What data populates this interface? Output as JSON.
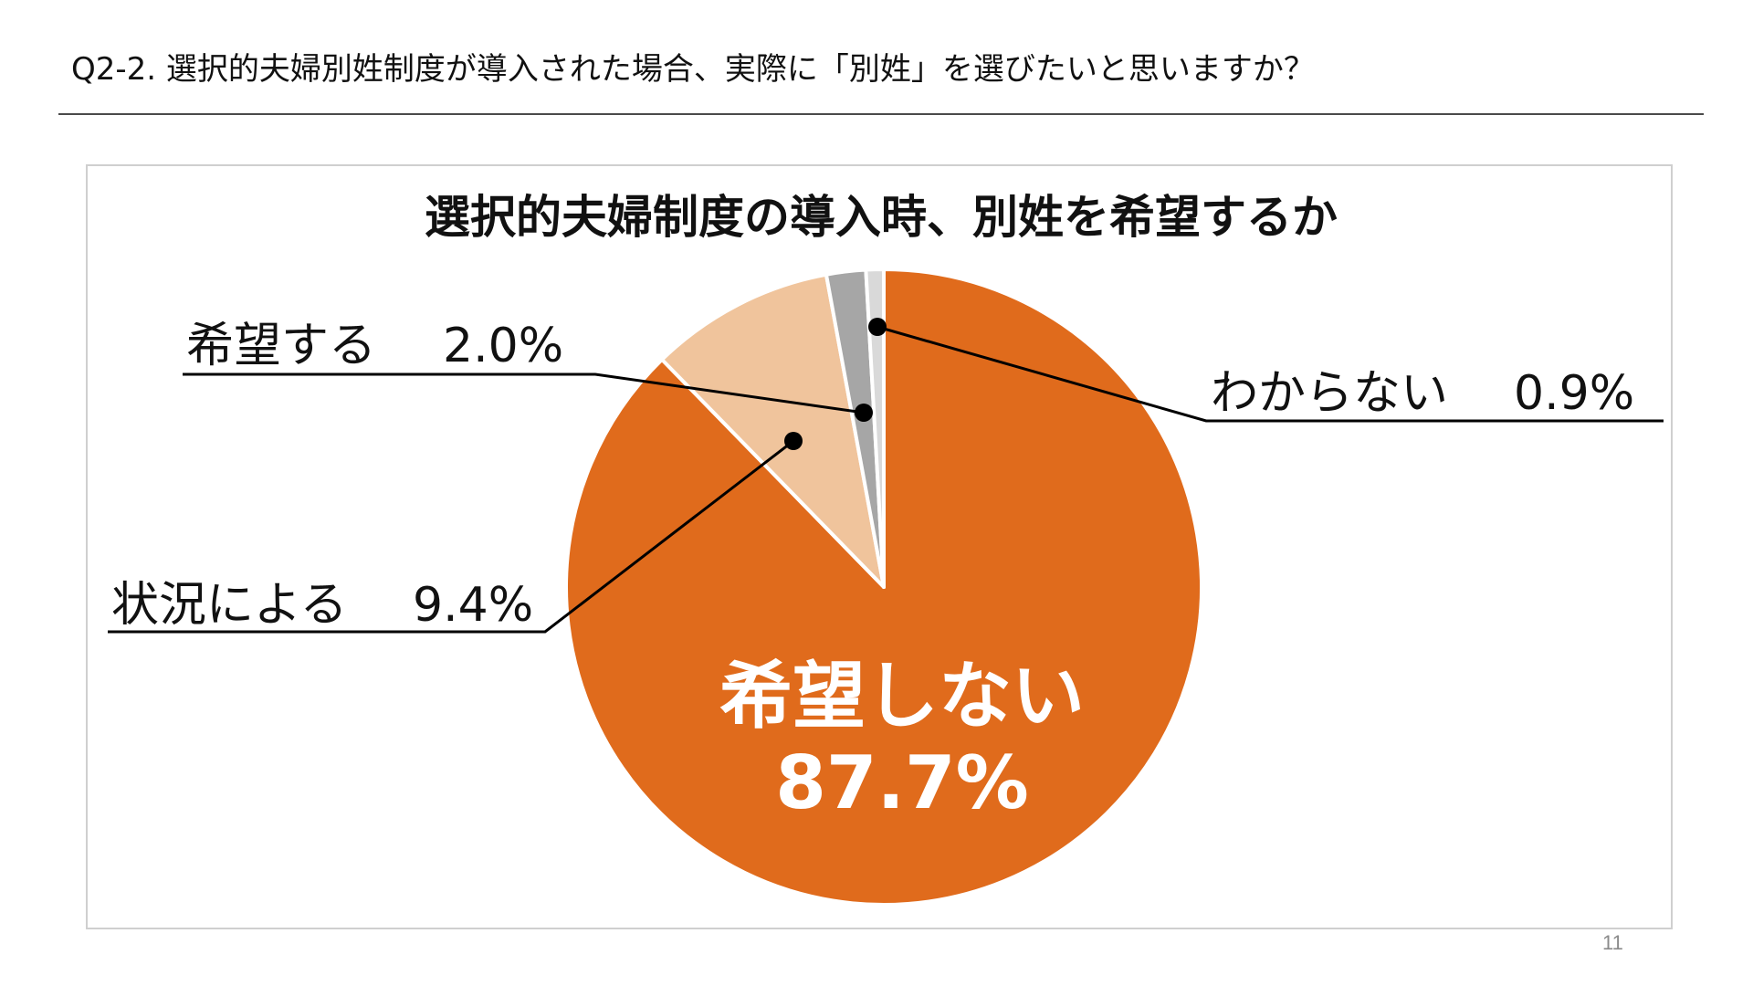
{
  "question": "Q2-2. 選択的夫婦別姓制度が導入された場合、実際に「別姓」を選びたいと思いますか？",
  "page_number": "11",
  "chart_data": {
    "type": "pie",
    "title": "選択的夫婦制度の導入時、別姓を希望するか",
    "start_angle_deg": 0,
    "direction": "clockwise",
    "slices": [
      {
        "label": "希望しない",
        "value": 87.7,
        "value_text": "87.7%",
        "color": "#E06B1C",
        "label_style": "inside"
      },
      {
        "label": "状況による",
        "value": 9.4,
        "value_text": "9.4%",
        "color": "#F0C49C",
        "label_style": "callout"
      },
      {
        "label": "希望する",
        "value": 2.0,
        "value_text": "2.0%",
        "color": "#A6A6A6",
        "label_style": "callout"
      },
      {
        "label": "わからない",
        "value": 0.9,
        "value_text": "0.9%",
        "color": "#D9D9D9",
        "label_style": "callout"
      }
    ],
    "separator_color": "#ffffff",
    "legend": "none"
  }
}
